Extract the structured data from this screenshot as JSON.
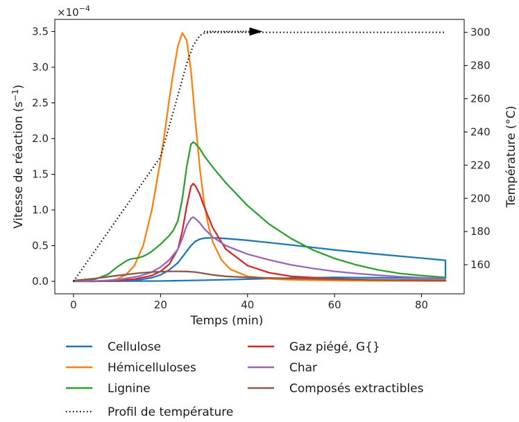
{
  "chart_data": {
    "type": "line",
    "x": {
      "label": "Temps (min)",
      "ticks": [
        0,
        20,
        40,
        60,
        80
      ],
      "range": [
        -4.3,
        89.8
      ]
    },
    "y_left": {
      "label": "Vitesse de réaction (s",
      "label_superscript": "−1",
      "label_close": ")",
      "multiplier_base": "×10",
      "multiplier_exp": "−4",
      "ticks": [
        "0.0",
        "0.5",
        "1.0",
        "1.5",
        "2.0",
        "2.5",
        "3.0",
        "3.5"
      ],
      "range": [
        -0.175,
        3.67
      ]
    },
    "y_right": {
      "label": "Température (°C)",
      "ticks": [
        160,
        180,
        200,
        220,
        240,
        260,
        280,
        300
      ],
      "range": [
        142.5,
        307.8
      ]
    },
    "legend_position": "bottom",
    "grid": false,
    "series": [
      {
        "name": "Cellulose",
        "color": "#1f77b4",
        "axis": "left",
        "points": [
          [
            0,
            0
          ],
          [
            10,
            0.005
          ],
          [
            15,
            0.02
          ],
          [
            18,
            0.05
          ],
          [
            20,
            0.09
          ],
          [
            22,
            0.16
          ],
          [
            24,
            0.26
          ],
          [
            25,
            0.34
          ],
          [
            26,
            0.42
          ],
          [
            27,
            0.5
          ],
          [
            28,
            0.56
          ],
          [
            29,
            0.59
          ],
          [
            30,
            0.605
          ],
          [
            32,
            0.61
          ],
          [
            35,
            0.6
          ],
          [
            40,
            0.575
          ],
          [
            50,
            0.51
          ],
          [
            60,
            0.44
          ],
          [
            70,
            0.38
          ],
          [
            80,
            0.325
          ],
          [
            85.5,
            0.295
          ],
          [
            85.5,
            0.04
          ],
          [
            70,
            0.05
          ],
          [
            60,
            0.055
          ],
          [
            50,
            0.045
          ],
          [
            40,
            0.03
          ],
          [
            30,
            0.015
          ],
          [
            20,
            0.005
          ],
          [
            0,
            0
          ]
        ]
      },
      {
        "name": "Hémicelluloses",
        "color": "#ff7f0e",
        "axis": "left",
        "points": [
          [
            0,
            0
          ],
          [
            5,
            0
          ],
          [
            8,
            0.01
          ],
          [
            10,
            0.03
          ],
          [
            12,
            0.09
          ],
          [
            14,
            0.22
          ],
          [
            16,
            0.5
          ],
          [
            18,
            1.0
          ],
          [
            20,
            1.7
          ],
          [
            21,
            2.1
          ],
          [
            22,
            2.55
          ],
          [
            23,
            2.95
          ],
          [
            24,
            3.3
          ],
          [
            25,
            3.48
          ],
          [
            26,
            3.38
          ],
          [
            27,
            2.95
          ],
          [
            28,
            2.25
          ],
          [
            29,
            1.6
          ],
          [
            30,
            1.1
          ],
          [
            31,
            0.78
          ],
          [
            32,
            0.55
          ],
          [
            34,
            0.3
          ],
          [
            36,
            0.17
          ],
          [
            40,
            0.07
          ],
          [
            45,
            0.035
          ],
          [
            50,
            0.02
          ],
          [
            60,
            0.01
          ],
          [
            70,
            0.007
          ],
          [
            85.5,
            0.005
          ]
        ]
      },
      {
        "name": "Lignine",
        "color": "#2ca02c",
        "axis": "left",
        "points": [
          [
            0,
            0
          ],
          [
            3,
            0.01
          ],
          [
            5,
            0.03
          ],
          [
            8,
            0.1
          ],
          [
            10,
            0.2
          ],
          [
            12,
            0.28
          ],
          [
            13,
            0.31
          ],
          [
            14,
            0.32
          ],
          [
            15,
            0.33
          ],
          [
            16,
            0.35
          ],
          [
            17,
            0.38
          ],
          [
            18,
            0.42
          ],
          [
            19,
            0.47
          ],
          [
            20,
            0.52
          ],
          [
            21,
            0.58
          ],
          [
            22,
            0.64
          ],
          [
            23,
            0.72
          ],
          [
            24,
            0.85
          ],
          [
            25,
            1.15
          ],
          [
            26,
            1.6
          ],
          [
            27,
            1.92
          ],
          [
            27.5,
            1.95
          ],
          [
            28,
            1.93
          ],
          [
            29,
            1.86
          ],
          [
            30,
            1.76
          ],
          [
            32,
            1.6
          ],
          [
            35,
            1.38
          ],
          [
            40,
            1.06
          ],
          [
            45,
            0.8
          ],
          [
            50,
            0.6
          ],
          [
            55,
            0.44
          ],
          [
            60,
            0.32
          ],
          [
            65,
            0.23
          ],
          [
            70,
            0.16
          ],
          [
            75,
            0.11
          ],
          [
            80,
            0.08
          ],
          [
            85.5,
            0.055
          ]
        ]
      },
      {
        "name": "Gaz piégé, G{}",
        "color": "#d62728",
        "axis": "left",
        "points": [
          [
            0,
            0
          ],
          [
            5,
            0
          ],
          [
            10,
            0.01
          ],
          [
            14,
            0.03
          ],
          [
            18,
            0.08
          ],
          [
            20,
            0.14
          ],
          [
            22,
            0.24
          ],
          [
            24,
            0.45
          ],
          [
            25,
            0.7
          ],
          [
            26,
            1.05
          ],
          [
            27,
            1.33
          ],
          [
            27.5,
            1.37
          ],
          [
            28,
            1.34
          ],
          [
            29,
            1.22
          ],
          [
            30,
            1.05
          ],
          [
            32,
            0.75
          ],
          [
            35,
            0.45
          ],
          [
            40,
            0.22
          ],
          [
            45,
            0.12
          ],
          [
            50,
            0.07
          ],
          [
            60,
            0.035
          ],
          [
            70,
            0.02
          ],
          [
            85.5,
            0.01
          ]
        ]
      },
      {
        "name": "Char",
        "color": "#9467bd",
        "axis": "left",
        "points": [
          [
            0,
            0
          ],
          [
            5,
            0.005
          ],
          [
            10,
            0.02
          ],
          [
            15,
            0.07
          ],
          [
            18,
            0.13
          ],
          [
            20,
            0.2
          ],
          [
            22,
            0.3
          ],
          [
            24,
            0.45
          ],
          [
            25,
            0.6
          ],
          [
            26,
            0.78
          ],
          [
            27,
            0.88
          ],
          [
            27.5,
            0.9
          ],
          [
            28,
            0.88
          ],
          [
            29,
            0.82
          ],
          [
            30,
            0.74
          ],
          [
            32,
            0.62
          ],
          [
            35,
            0.5
          ],
          [
            40,
            0.38
          ],
          [
            45,
            0.3
          ],
          [
            50,
            0.23
          ],
          [
            55,
            0.18
          ],
          [
            60,
            0.14
          ],
          [
            65,
            0.11
          ],
          [
            70,
            0.085
          ],
          [
            75,
            0.065
          ],
          [
            80,
            0.05
          ],
          [
            85.5,
            0.04
          ]
        ]
      },
      {
        "name": "Composés extractibles",
        "color": "#8c564b",
        "axis": "left",
        "points": [
          [
            0,
            0.01
          ],
          [
            5,
            0.04
          ],
          [
            10,
            0.08
          ],
          [
            15,
            0.115
          ],
          [
            18,
            0.13
          ],
          [
            20,
            0.135
          ],
          [
            22,
            0.14
          ],
          [
            24,
            0.14
          ],
          [
            26,
            0.138
          ],
          [
            28,
            0.13
          ],
          [
            30,
            0.11
          ],
          [
            32,
            0.09
          ],
          [
            35,
            0.07
          ],
          [
            40,
            0.055
          ],
          [
            50,
            0.04
          ],
          [
            60,
            0.03
          ],
          [
            70,
            0.02
          ],
          [
            85.5,
            0.015
          ]
        ]
      },
      {
        "name": "Profil de température",
        "color": "#000000",
        "axis": "right",
        "dashed": true,
        "points": [
          [
            0,
            150
          ],
          [
            10,
            187.5
          ],
          [
            20,
            225
          ],
          [
            24,
            262
          ],
          [
            26,
            281
          ],
          [
            27.5,
            292
          ],
          [
            29,
            298
          ],
          [
            30,
            299.5
          ],
          [
            32,
            300
          ],
          [
            40,
            300
          ],
          [
            60,
            300
          ],
          [
            85.5,
            300
          ]
        ]
      }
    ],
    "annotation": {
      "type": "arrow",
      "from": [
        30,
        3.5
      ],
      "to": [
        43,
        3.5
      ],
      "style": "dotted"
    }
  }
}
